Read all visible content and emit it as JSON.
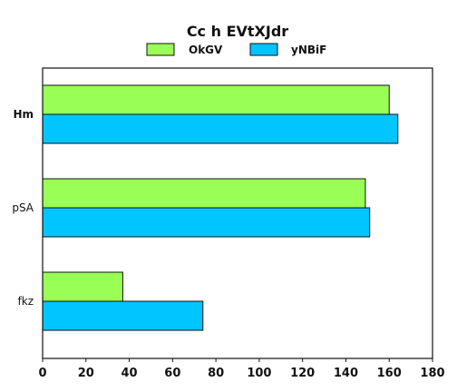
{
  "chart_data": {
    "type": "bar",
    "orientation": "horizontal",
    "title": "Cc h EVtXJdr",
    "categories": [
      "Hm",
      "pSA",
      "fkz"
    ],
    "series": [
      {
        "name": "OkGV",
        "color": "#99ff55",
        "values": [
          160,
          149,
          37
        ]
      },
      {
        "name": "yNBiF",
        "color": "#00c5ff",
        "values": [
          164,
          151,
          74
        ]
      }
    ],
    "xlim": [
      0,
      180
    ],
    "xticks": [
      0,
      20,
      40,
      60,
      80,
      100,
      120,
      140,
      160,
      180
    ],
    "grid": false,
    "legend_position": "top-center"
  }
}
